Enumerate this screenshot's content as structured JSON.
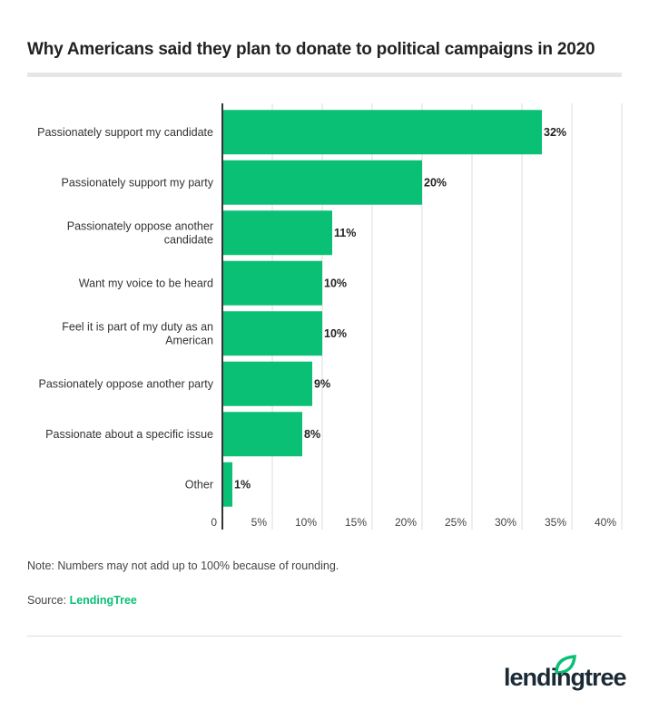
{
  "title": "Why Americans said they plan to donate to political campaigns in 2020",
  "note": "Note: Numbers may not add up to 100% because of rounding.",
  "source_label": "Source: ",
  "source_name": "LendingTree",
  "logo": "lendingtree",
  "colors": {
    "bar": "#0ac075",
    "grid": "#dddddd",
    "axis": "#333333",
    "brand": "#0ac075"
  },
  "chart_data": {
    "type": "bar",
    "orientation": "horizontal",
    "title": "Why Americans said they plan to donate to political campaigns in 2020",
    "categories": [
      [
        "Passionately support my candidate"
      ],
      [
        "Passionately support my party"
      ],
      [
        "Passionately oppose another",
        "candidate"
      ],
      [
        "Want my voice to be heard"
      ],
      [
        "Feel it is part of my duty as an",
        "American"
      ],
      [
        "Passionately oppose another party"
      ],
      [
        "Passionate about a specific issue"
      ],
      [
        "Other"
      ]
    ],
    "values": [
      32,
      20,
      11,
      10,
      10,
      9,
      8,
      1
    ],
    "data_labels": [
      "32%",
      "20%",
      "11%",
      "10%",
      "10%",
      "9%",
      "8%",
      "1%"
    ],
    "xlim": [
      0,
      40
    ],
    "xticks": [
      0,
      5,
      10,
      15,
      20,
      25,
      30,
      35,
      40
    ],
    "xtick_labels": [
      "0",
      "5%",
      "10%",
      "15%",
      "20%",
      "25%",
      "30%",
      "35%",
      "40%"
    ],
    "grid": true,
    "legend": "none"
  }
}
